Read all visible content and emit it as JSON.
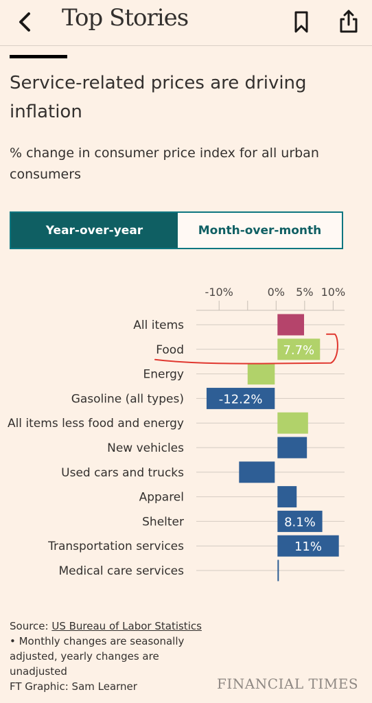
{
  "header": {
    "title": "Top Stories",
    "back_icon": "chevron-left-icon",
    "bookmark_icon": "bookmark-icon",
    "share_icon": "share-icon"
  },
  "article": {
    "headline": "Service-related prices are driving inflation",
    "subtitle": "% change in consumer price index for all urban consumers"
  },
  "toggle": {
    "options": [
      "Year-over-year",
      "Month-over-month"
    ],
    "selected": "Year-over-year"
  },
  "chart_data": {
    "type": "bar",
    "orientation": "horizontal",
    "xlim": [
      -14,
      12
    ],
    "xticks": [
      -10,
      -5,
      0,
      5,
      10
    ],
    "xtick_labels": [
      "-10%",
      "",
      "0%",
      "5%",
      "10%"
    ],
    "grid": true,
    "categories": [
      "All items",
      "Food",
      "Energy",
      "Gasoline (all types)",
      "All items less food and energy",
      "New vehicles",
      "Used cars and trucks",
      "Apparel",
      "Shelter",
      "Transportation services",
      "Medical care services"
    ],
    "values": [
      4.9,
      7.7,
      -5.0,
      -12.2,
      5.6,
      5.4,
      -6.5,
      3.6,
      8.1,
      11.0,
      0.3
    ],
    "data_labels": [
      "",
      "7.7%",
      "",
      "-12.2%",
      "",
      "",
      "",
      "",
      "8.1%",
      "11%",
      ""
    ],
    "colors": [
      "#b5446b",
      "#b1d26a",
      "#b1d26a",
      "#2e5e95",
      "#b1d26a",
      "#2e5e95",
      "#2e5e95",
      "#2e5e95",
      "#2e5e95",
      "#2e5e95",
      "#2e5e95"
    ],
    "label_colors": [
      "#ffffff",
      "#ffffff",
      "#ffffff",
      "#ffffff",
      "#ffffff",
      "#ffffff",
      "#ffffff",
      "#ffffff",
      "#ffffff",
      "#ffffff",
      "#ffffff"
    ],
    "annotation": "hand-drawn red circle around Food row",
    "annotation_color": "#e0372f"
  },
  "footer": {
    "source_prefix": "Source: ",
    "source_link": "US Bureau of Labor Statistics",
    "note": "• Monthly changes are seasonally adjusted, yearly changes are unadjusted",
    "credit": "FT Graphic: Sam Learner",
    "brand": "FINANCIAL TIMES"
  }
}
